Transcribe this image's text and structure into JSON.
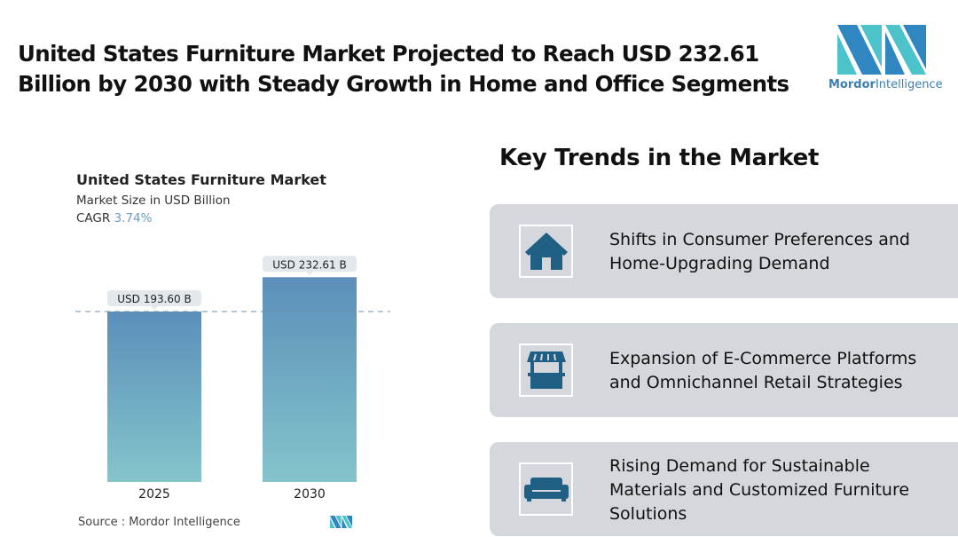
{
  "header": {
    "title_line1": "United States Furniture Market Projected to Reach USD 232.61",
    "title_line2": "Billion by 2030 with Steady Growth in Home and Office Segments",
    "logo_text_bold": "Mordor",
    "logo_text": "Intelligence"
  },
  "chart_data": {
    "type": "bar",
    "title": "United States Furniture Market",
    "subtitle": "Market Size in USD Billion",
    "cagr_label": "CAGR",
    "cagr_value": "3.74%",
    "categories": [
      "2025",
      "2030"
    ],
    "values": [
      193.6,
      232.61
    ],
    "data_labels": [
      "USD 193.60 B",
      "USD 232.61 B"
    ],
    "ylim": [
      0,
      235
    ],
    "reference_line": 193.6,
    "source": "Source :  Mordor Intelligence",
    "colors": {
      "top": "#5b8fba",
      "bottom": "#85c4cb"
    }
  },
  "trends": {
    "heading": "Key Trends in the Market",
    "items": [
      {
        "icon": "house-icon",
        "lines": [
          "Shifts in Consumer Preferences and",
          "Home-Upgrading Demand"
        ]
      },
      {
        "icon": "storefront-icon",
        "lines": [
          "Expansion of E-Commerce Platforms",
          "and Omnichannel Retail Strategies"
        ]
      },
      {
        "icon": "sofa-icon",
        "lines": [
          "Rising Demand for Sustainable",
          "Materials and Customized Furniture",
          "Solutions"
        ]
      }
    ]
  },
  "colors": {
    "icon": "#1f5f84",
    "card": "#d4d7dc"
  }
}
